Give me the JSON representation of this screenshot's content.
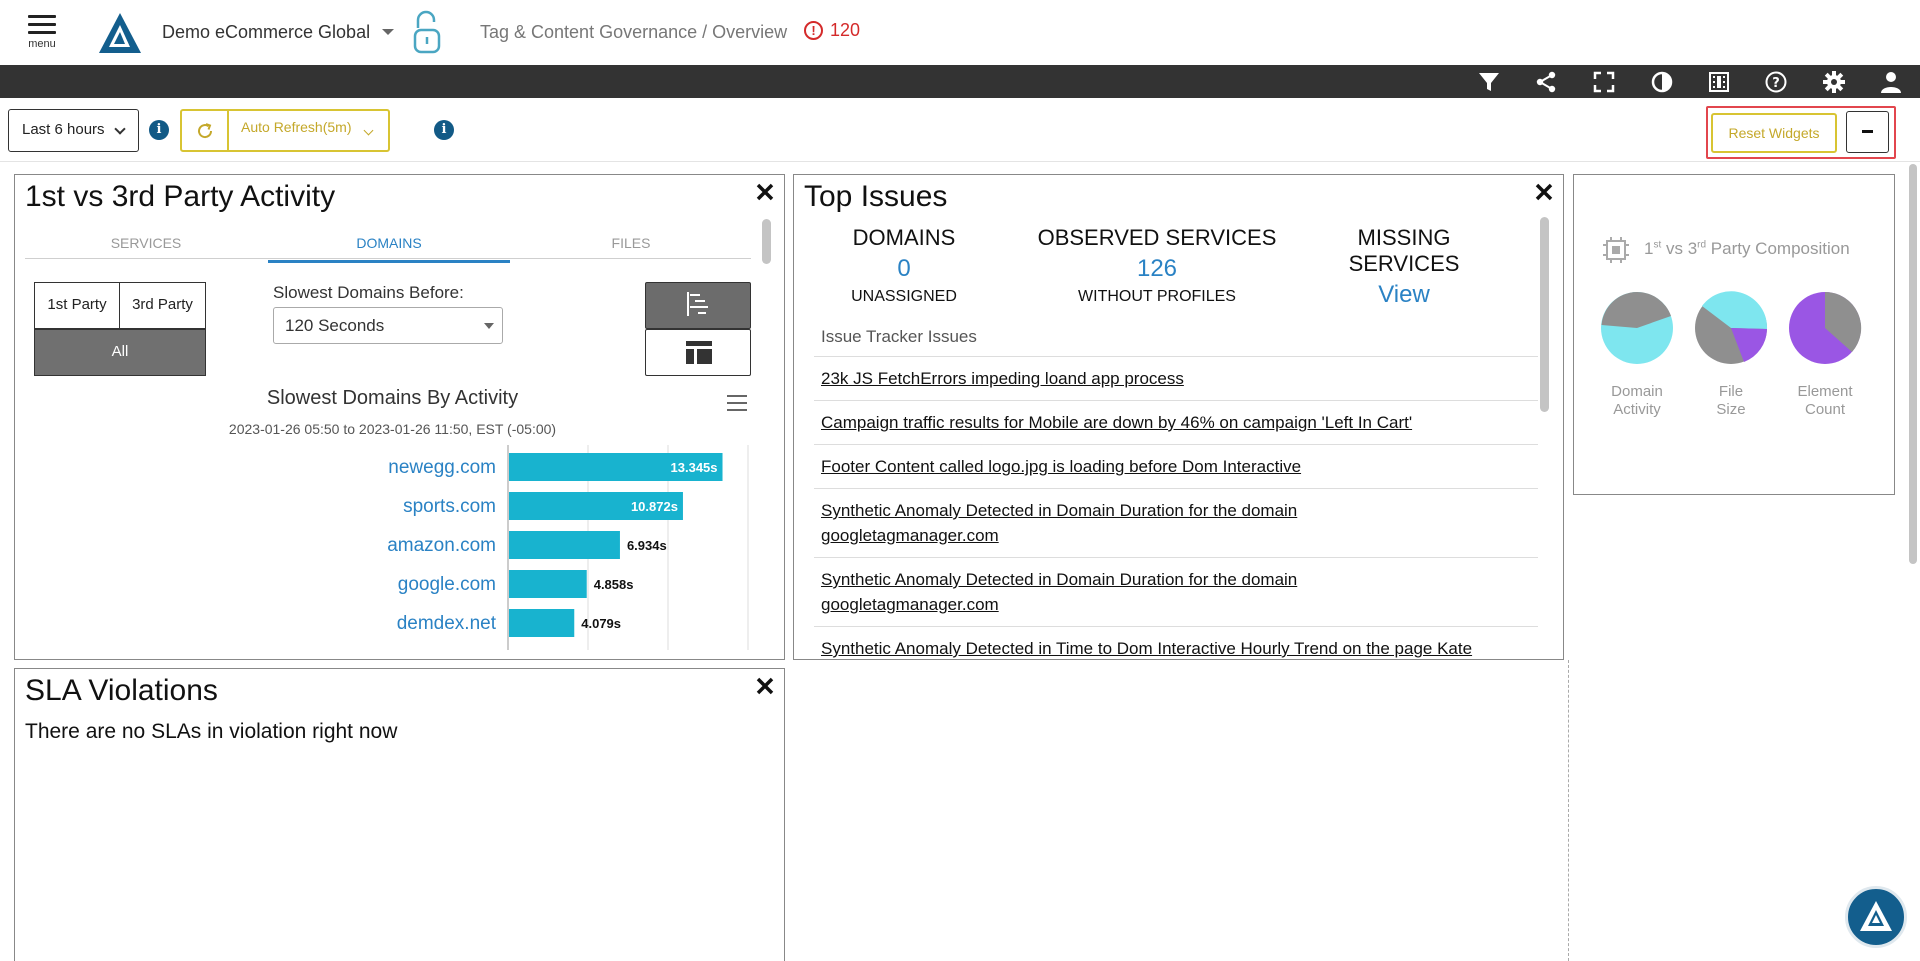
{
  "header": {
    "menu_label": "menu",
    "site_name": "Demo eCommerce Global",
    "breadcrumb": "Tag & Content Governance / Overview",
    "alert_count": "120",
    "alert_symbol": "!"
  },
  "toolbar_icons": [
    "filter-icon",
    "share-icon",
    "fullscreen-icon",
    "contrast-icon",
    "film-icon",
    "help-icon",
    "gear-icon",
    "user-icon"
  ],
  "controls": {
    "time_range": "Last 6 hours",
    "info_symbol": "i",
    "auto_refresh": "Auto Refresh(5m)",
    "reset_widgets": "Reset Widgets"
  },
  "party_panel": {
    "title": "1st vs 3rd Party Activity",
    "tabs": [
      "SERVICES",
      "DOMAINS",
      "FILES"
    ],
    "active_tab": "DOMAINS",
    "filter_buttons": [
      "1st Party",
      "3rd Party",
      "All"
    ],
    "selected_filter": "All",
    "slowest_label": "Slowest Domains Before:",
    "slowest_value": "120 Seconds"
  },
  "chart_data": {
    "type": "bar",
    "orientation": "horizontal",
    "title": "Slowest Domains By Activity",
    "subtitle": "2023-01-26 05:50 to 2023-01-26 11:50, EST (-05:00)",
    "categories": [
      "newegg.com",
      "sports.com",
      "amazon.com",
      "google.com",
      "demdex.net"
    ],
    "values": [
      13.345,
      10.872,
      6.934,
      4.858,
      4.079
    ],
    "value_labels": [
      "13.345s",
      "10.872s",
      "6.934s",
      "4.858s",
      "4.079s"
    ],
    "xlim": [
      0,
      15
    ],
    "gridlines": [
      5,
      10,
      15
    ],
    "bar_color": "#18b3cf",
    "category_color": "#2a82c4"
  },
  "issues_panel": {
    "title": "Top Issues",
    "kpis": [
      {
        "head": "DOMAINS",
        "value": "0",
        "foot": "UNASSIGNED"
      },
      {
        "head": "OBSERVED SERVICES",
        "value": "126",
        "foot": "WITHOUT PROFILES"
      },
      {
        "head": "MISSING SERVICES",
        "value": "View",
        "foot": ""
      }
    ],
    "tracker_heading": "Issue Tracker Issues",
    "issues": [
      "23k JS FetchErrors impeding loand app process",
      "Campaign traffic results for Mobile are down by 46% on campaign 'Left In Cart'",
      "Footer Content called logo.jpg is loading before Dom Interactive",
      "Synthetic Anomaly Detected in Domain Duration for the domain googletagmanager.com",
      "Synthetic Anomaly Detected in Domain Duration for the domain googletagmanager.com",
      "Synthetic Anomaly Detected in Time to Dom Interactive Hourly Trend on the page Kate"
    ]
  },
  "composition_panel": {
    "title_a": "1",
    "title_a_sup": "st",
    "title_b": " vs 3",
    "title_b_sup": "rd",
    "title_c": " Party Composition",
    "pies": [
      {
        "caption_1": "Domain",
        "caption_2": "Activity",
        "first_party_share": 0.3,
        "colors": [
          "#8f8f8f",
          "#7ee6ef"
        ]
      },
      {
        "caption_1": "File",
        "caption_2": "Size",
        "first_party_share": 0.37,
        "colors": [
          "#8f8f8f",
          "#7ee6ef",
          "#9a56e4"
        ]
      },
      {
        "caption_1": "Element",
        "caption_2": "Count",
        "first_party_share": 0.38,
        "colors": [
          "#8f8f8f",
          "#9a56e4"
        ]
      }
    ]
  },
  "sla_panel": {
    "title": "SLA Violations",
    "message": "There are no SLAs in violation right now"
  },
  "colors": {
    "accent_blue": "#2a82c4",
    "toolbar_bg": "#333333",
    "alert_red": "#d42a2a",
    "gold": "#c4a82a",
    "highlight": "#e2464d"
  }
}
